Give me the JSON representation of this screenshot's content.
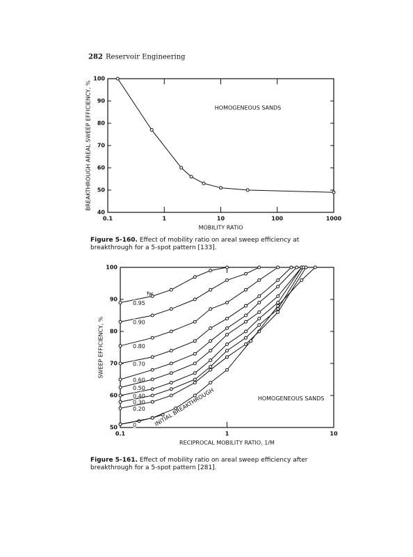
{
  "header": {
    "page_number": "282",
    "running_title": "Reservoir Engineering"
  },
  "chart_data": [
    {
      "type": "line",
      "xscale": "log",
      "grid": false,
      "markers": true,
      "xlabel": "MOBILITY RATIO",
      "ylabel": "BREAKTHROUGH AREAL SWEEP EFFICIENCY, %",
      "annotations": [
        "HOMOGENEOUS SANDS"
      ],
      "xlim": [
        0.1,
        1000
      ],
      "xticks": [
        0.1,
        1,
        10,
        100,
        1000
      ],
      "ylim": [
        40,
        100
      ],
      "yticks": [
        40,
        50,
        60,
        70,
        80,
        90,
        100
      ],
      "series": [
        {
          "color": "#111111",
          "x": [
            0.15,
            0.6,
            2,
            3,
            5,
            10,
            30,
            1000
          ],
          "values": [
            100,
            77,
            60,
            56,
            53,
            51,
            50,
            49
          ]
        }
      ],
      "caption": {
        "label": "Figure 5-160.",
        "text": "Effect of mobility ratio on areal sweep efficiency at breakthrough for a 5-spot pattern [133]."
      }
    },
    {
      "type": "line",
      "xscale": "log",
      "grid": false,
      "markers": true,
      "xlabel": "RECIPROCAL MOBILITY RATIO, 1/M",
      "ylabel": "SWEEP EFFICIENCY, %",
      "annotations": [
        "HOMOGENEOUS SANDS"
      ],
      "legend_title": "fw",
      "xlim": [
        0.1,
        10
      ],
      "xticks": [
        0.1,
        1,
        10
      ],
      "ylim": [
        50,
        100
      ],
      "yticks": [
        50,
        60,
        70,
        80,
        90,
        100
      ],
      "series": [
        {
          "name": "0.95",
          "color": "#111111",
          "x": [
            0.1,
            0.2,
            0.3,
            0.5,
            0.7,
            1
          ],
          "values": [
            89,
            91,
            93,
            97,
            99,
            100
          ]
        },
        {
          "name": "0.90",
          "color": "#111111",
          "x": [
            0.1,
            0.2,
            0.3,
            0.5,
            0.7,
            1,
            1.5,
            2
          ],
          "values": [
            83,
            85,
            87,
            90,
            93,
            96,
            98,
            100
          ]
        },
        {
          "name": "0.80",
          "color": "#111111",
          "x": [
            0.1,
            0.2,
            0.3,
            0.5,
            0.7,
            1,
            1.5,
            2,
            3
          ],
          "values": [
            75.5,
            78,
            80,
            83,
            87,
            89,
            93,
            96,
            100
          ]
        },
        {
          "name": "0.70",
          "color": "#111111",
          "x": [
            0.1,
            0.2,
            0.3,
            0.5,
            0.7,
            1,
            1.5,
            2,
            3,
            4
          ],
          "values": [
            70,
            72,
            74,
            77,
            81,
            84,
            88,
            91,
            96,
            100
          ]
        },
        {
          "name": "0.60",
          "color": "#111111",
          "x": [
            0.1,
            0.2,
            0.3,
            0.5,
            0.7,
            1,
            1.5,
            2,
            3,
            4.5
          ],
          "values": [
            65,
            68,
            70,
            73,
            77,
            81,
            85,
            89,
            94,
            100
          ]
        },
        {
          "name": "0.50",
          "color": "#111111",
          "x": [
            0.1,
            0.2,
            0.3,
            0.5,
            0.7,
            1,
            1.5,
            2,
            3,
            5
          ],
          "values": [
            62.5,
            65,
            67,
            70,
            74,
            79,
            83,
            86,
            91,
            100
          ]
        },
        {
          "name": "0.40",
          "color": "#111111",
          "x": [
            0.1,
            0.2,
            0.3,
            0.5,
            0.7,
            1,
            1.5,
            2,
            3,
            5
          ],
          "values": [
            60,
            62,
            64,
            67,
            71,
            76,
            80,
            84,
            89,
            100
          ]
        },
        {
          "name": "0.30",
          "color": "#111111",
          "x": [
            0.1,
            0.2,
            0.3,
            0.5,
            0.7,
            1,
            1.5,
            2,
            3,
            5.2
          ],
          "values": [
            58,
            60,
            62,
            65,
            69,
            74,
            78,
            82,
            87,
            100
          ]
        },
        {
          "name": "0.20",
          "color": "#111111",
          "x": [
            0.1,
            0.2,
            0.3,
            0.5,
            0.7,
            1,
            1.5,
            2,
            3,
            5.5
          ],
          "values": [
            56,
            58,
            60,
            64,
            68,
            72,
            76,
            80,
            86,
            100
          ]
        },
        {
          "name": "0",
          "color": "#111111",
          "x": [
            0.1,
            0.15,
            0.2,
            0.25
          ],
          "values": [
            51,
            52,
            53,
            54
          ]
        },
        {
          "name": "INITIAL BREAKTHROUGH",
          "color": "#111111",
          "x": [
            0.1,
            0.2,
            0.33,
            0.5,
            0.7,
            1,
            1.67,
            3,
            5,
            6.7
          ],
          "values": [
            51,
            53,
            56,
            60,
            64,
            68,
            77,
            88,
            96,
            100
          ]
        }
      ],
      "caption": {
        "label": "Figure 5-161.",
        "text": "Effect of mobility ratio on areal sweep efficiency after breakthrough for a 5-spot pattern [281]."
      }
    }
  ]
}
